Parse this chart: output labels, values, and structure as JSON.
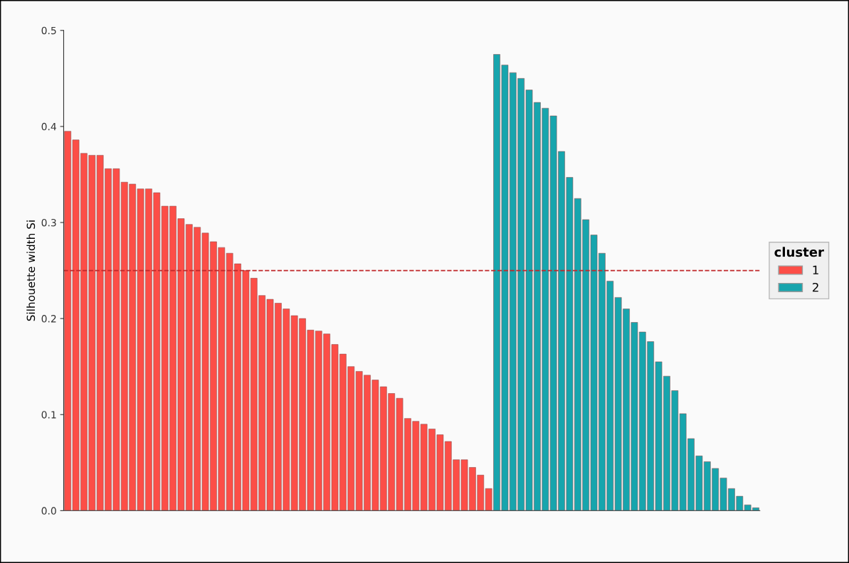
{
  "chart_data": {
    "type": "bar",
    "ylabel": "Silhouette width Si",
    "legend_title": "cluster",
    "legend": "right",
    "grid": false,
    "categories": [
      null,
      null,
      null,
      null,
      null,
      null,
      null,
      null,
      null,
      null,
      null,
      null,
      null,
      null,
      null,
      null,
      null,
      null,
      null,
      null,
      null,
      null,
      null,
      null,
      null,
      null,
      null,
      null,
      null,
      null,
      null,
      null,
      null,
      null,
      null,
      null,
      null,
      null,
      null,
      null,
      null,
      null,
      null,
      null,
      null,
      null,
      null,
      null,
      null,
      null,
      null,
      null,
      null,
      null,
      null,
      null,
      null,
      null,
      null,
      null,
      null,
      null,
      null,
      null,
      null,
      null,
      null,
      null,
      null,
      null,
      null,
      null,
      null,
      null,
      null,
      null,
      null,
      null,
      null,
      null,
      null,
      null,
      null,
      null,
      null,
      null
    ],
    "series": [
      {
        "name": "1",
        "color": "#fc4e47",
        "values": [
          0.395,
          0.386,
          0.372,
          0.37,
          0.37,
          0.356,
          0.356,
          0.342,
          0.34,
          0.335,
          0.335,
          0.331,
          0.317,
          0.317,
          0.304,
          0.298,
          0.295,
          0.289,
          0.28,
          0.274,
          0.268,
          0.257,
          0.25,
          0.242,
          0.224,
          0.22,
          0.216,
          0.21,
          0.203,
          0.2,
          0.188,
          0.187,
          0.184,
          0.173,
          0.163,
          0.15,
          0.145,
          0.141,
          0.136,
          0.129,
          0.122,
          0.117,
          0.096,
          0.093,
          0.09,
          0.085,
          0.079,
          0.072,
          0.053,
          0.053,
          0.045,
          0.037,
          0.023,
          null,
          null,
          null,
          null,
          null,
          null,
          null,
          null,
          null,
          null,
          null,
          null,
          null,
          null,
          null,
          null,
          null,
          null,
          null,
          null,
          null,
          null,
          null,
          null,
          null,
          null,
          null,
          null,
          null,
          null,
          null,
          null,
          null
        ]
      },
      {
        "name": "2",
        "color": "#17a5ad",
        "values": [
          null,
          null,
          null,
          null,
          null,
          null,
          null,
          null,
          null,
          null,
          null,
          null,
          null,
          null,
          null,
          null,
          null,
          null,
          null,
          null,
          null,
          null,
          null,
          null,
          null,
          null,
          null,
          null,
          null,
          null,
          null,
          null,
          null,
          null,
          null,
          null,
          null,
          null,
          null,
          null,
          null,
          null,
          null,
          null,
          null,
          null,
          null,
          null,
          null,
          null,
          null,
          null,
          null,
          0.475,
          0.464,
          0.456,
          0.45,
          0.438,
          0.425,
          0.419,
          0.411,
          0.374,
          0.347,
          0.325,
          0.303,
          0.287,
          0.268,
          0.239,
          0.222,
          0.21,
          0.196,
          0.186,
          0.176,
          0.155,
          0.14,
          0.125,
          0.101,
          0.075,
          0.057,
          0.051,
          0.044,
          0.034,
          0.023,
          0.015,
          0.006,
          0.003
        ]
      }
    ],
    "ylim": [
      0,
      0.5
    ],
    "yticks": [
      {
        "value": 0,
        "label": "0.0"
      },
      {
        "value": 0.1,
        "label": "0.1"
      },
      {
        "value": 0.2,
        "label": "0.2"
      },
      {
        "value": 0.3,
        "label": "0.3"
      },
      {
        "value": 0.4,
        "label": "0.4"
      },
      {
        "value": 0.5,
        "label": "0.5"
      }
    ],
    "ref_lines": [
      {
        "axis": "y",
        "value": 0.25,
        "color": "#c0282a",
        "line_style": "dashed"
      }
    ]
  }
}
